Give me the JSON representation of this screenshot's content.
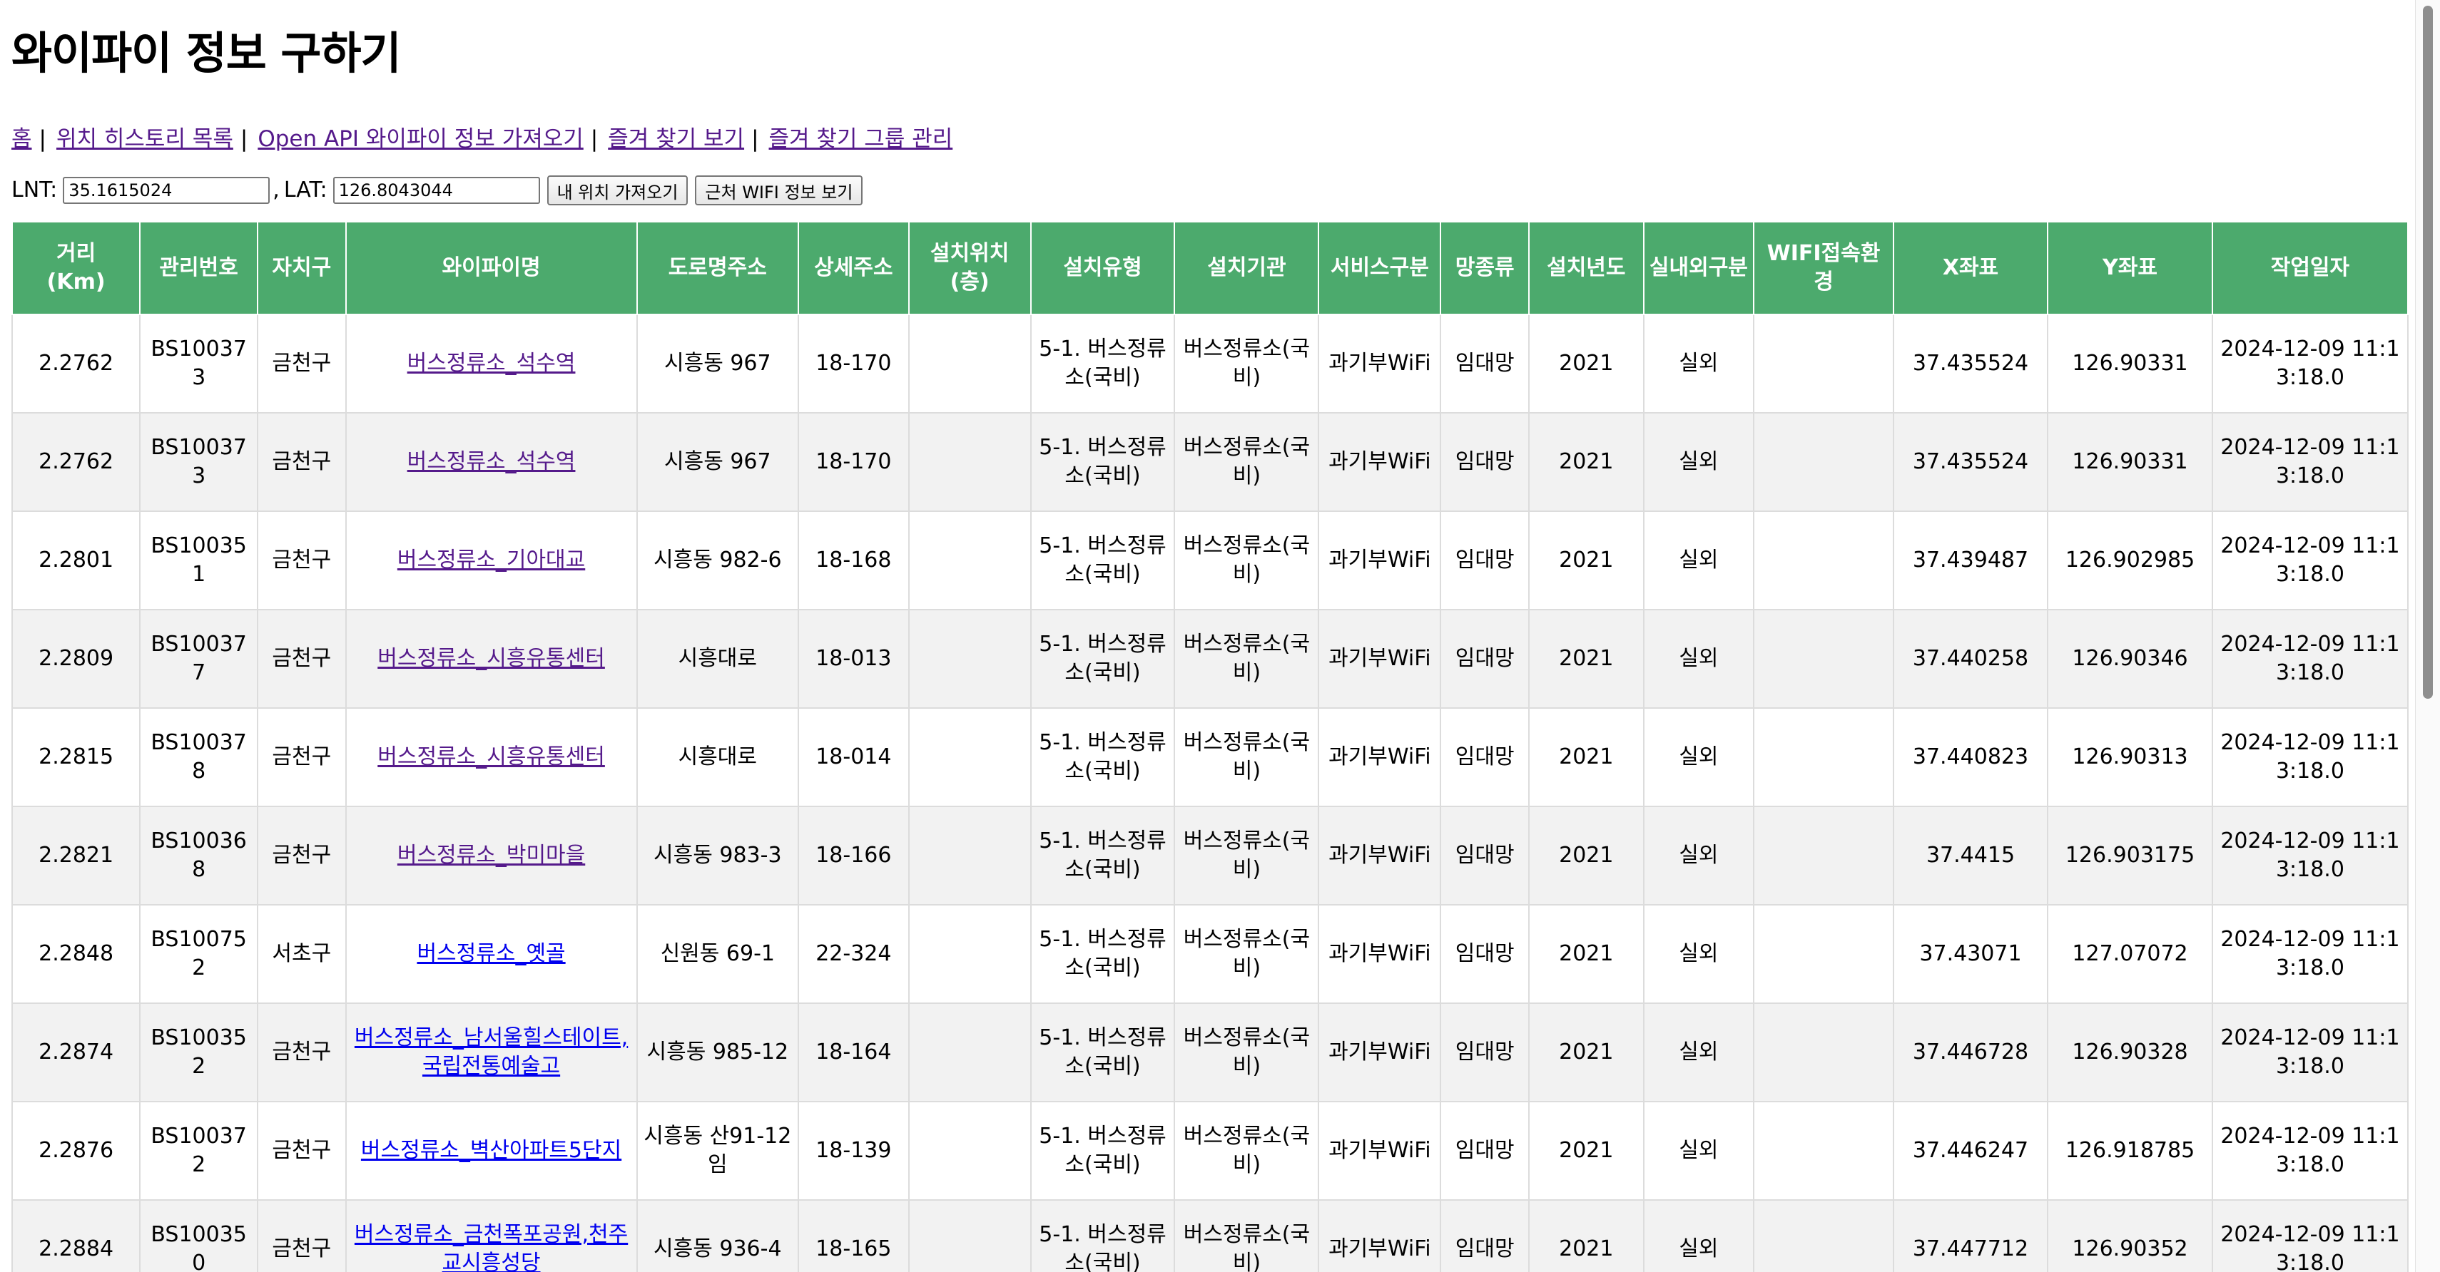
{
  "page": {
    "title": "와이파이 정보 구하기"
  },
  "nav": {
    "items": [
      {
        "label": "홈"
      },
      {
        "label": "위치 히스토리 목록"
      },
      {
        "label": "Open API 와이파이 정보 가져오기"
      },
      {
        "label": "즐겨 찾기 보기"
      },
      {
        "label": "즐겨 찾기 그룹 관리"
      }
    ],
    "separator": "|"
  },
  "controls": {
    "lnt_label": "LNT:",
    "lnt_value": "35.1615024",
    "comma": ",",
    "lat_label": "LAT:",
    "lat_value": "126.8043044",
    "get_location_label": "내 위치 가져오기",
    "nearby_wifi_label": "근처 WIFI 정보 보기"
  },
  "table": {
    "headers": [
      "거리\n(Km)",
      "관리번호",
      "자치구",
      "와이파이명",
      "도로명주소",
      "상세주소",
      "설치위치\n(층)",
      "설치유형",
      "설치기관",
      "서비스구분",
      "망종류",
      "설치년도",
      "실내외구분",
      "WIFI접속환경",
      "X좌표",
      "Y좌표",
      "작업일자"
    ],
    "rows": [
      {
        "distance": "2.2762",
        "mgr_no": "BS100373",
        "district": "금천구",
        "name": "버스정류소_석수역",
        "address": "시흥동 967",
        "detail": "18-170",
        "floor": "",
        "install_type": "5-1. 버스정류소(국비)",
        "install_org": "버스정류소(국비)",
        "service": "과기부WiFi",
        "net_type": "임대망",
        "year": "2021",
        "in_out": "실외",
        "wifi_env": "",
        "x": "37.435524",
        "y": "126.90331",
        "work_date": "2024-12-09 11:13:18.0"
      },
      {
        "distance": "2.2762",
        "mgr_no": "BS100373",
        "district": "금천구",
        "name": "버스정류소_석수역",
        "address": "시흥동 967",
        "detail": "18-170",
        "floor": "",
        "install_type": "5-1. 버스정류소(국비)",
        "install_org": "버스정류소(국비)",
        "service": "과기부WiFi",
        "net_type": "임대망",
        "year": "2021",
        "in_out": "실외",
        "wifi_env": "",
        "x": "37.435524",
        "y": "126.90331",
        "work_date": "2024-12-09 11:13:18.0"
      },
      {
        "distance": "2.2801",
        "mgr_no": "BS100351",
        "district": "금천구",
        "name": "버스정류소_기아대교",
        "address": "시흥동 982-6",
        "detail": "18-168",
        "floor": "",
        "install_type": "5-1. 버스정류소(국비)",
        "install_org": "버스정류소(국비)",
        "service": "과기부WiFi",
        "net_type": "임대망",
        "year": "2021",
        "in_out": "실외",
        "wifi_env": "",
        "x": "37.439487",
        "y": "126.902985",
        "work_date": "2024-12-09 11:13:18.0"
      },
      {
        "distance": "2.2809",
        "mgr_no": "BS100377",
        "district": "금천구",
        "name": "버스정류소_시흥유통센터",
        "address": "시흥대로",
        "detail": "18-013",
        "floor": "",
        "install_type": "5-1. 버스정류소(국비)",
        "install_org": "버스정류소(국비)",
        "service": "과기부WiFi",
        "net_type": "임대망",
        "year": "2021",
        "in_out": "실외",
        "wifi_env": "",
        "x": "37.440258",
        "y": "126.90346",
        "work_date": "2024-12-09 11:13:18.0"
      },
      {
        "distance": "2.2815",
        "mgr_no": "BS100378",
        "district": "금천구",
        "name": "버스정류소_시흥유통센터",
        "address": "시흥대로",
        "detail": "18-014",
        "floor": "",
        "install_type": "5-1. 버스정류소(국비)",
        "install_org": "버스정류소(국비)",
        "service": "과기부WiFi",
        "net_type": "임대망",
        "year": "2021",
        "in_out": "실외",
        "wifi_env": "",
        "x": "37.440823",
        "y": "126.90313",
        "work_date": "2024-12-09 11:13:18.0"
      },
      {
        "distance": "2.2821",
        "mgr_no": "BS100368",
        "district": "금천구",
        "name": "버스정류소_박미마을",
        "address": "시흥동 983-3",
        "detail": "18-166",
        "floor": "",
        "install_type": "5-1. 버스정류소(국비)",
        "install_org": "버스정류소(국비)",
        "service": "과기부WiFi",
        "net_type": "임대망",
        "year": "2021",
        "in_out": "실외",
        "wifi_env": "",
        "x": "37.4415",
        "y": "126.903175",
        "work_date": "2024-12-09 11:13:18.0"
      },
      {
        "distance": "2.2848",
        "mgr_no": "BS100752",
        "district": "서초구",
        "name": "버스정류소_옛골",
        "address": "신원동 69-1",
        "detail": "22-324",
        "floor": "",
        "install_type": "5-1. 버스정류소(국비)",
        "install_org": "버스정류소(국비)",
        "service": "과기부WiFi",
        "net_type": "임대망",
        "year": "2021",
        "in_out": "실외",
        "wifi_env": "",
        "x": "37.43071",
        "y": "127.07072",
        "work_date": "2024-12-09 11:13:18.0"
      },
      {
        "distance": "2.2874",
        "mgr_no": "BS100352",
        "district": "금천구",
        "name": "버스정류소_남서울힐스테이트,국립전통예술고",
        "address": "시흥동 985-12",
        "detail": "18-164",
        "floor": "",
        "install_type": "5-1. 버스정류소(국비)",
        "install_org": "버스정류소(국비)",
        "service": "과기부WiFi",
        "net_type": "임대망",
        "year": "2021",
        "in_out": "실외",
        "wifi_env": "",
        "x": "37.446728",
        "y": "126.90328",
        "work_date": "2024-12-09 11:13:18.0"
      },
      {
        "distance": "2.2876",
        "mgr_no": "BS100372",
        "district": "금천구",
        "name": "버스정류소_벽산아파트5단지",
        "address": "시흥동 산91-12임",
        "detail": "18-139",
        "floor": "",
        "install_type": "5-1. 버스정류소(국비)",
        "install_org": "버스정류소(국비)",
        "service": "과기부WiFi",
        "net_type": "임대망",
        "year": "2021",
        "in_out": "실외",
        "wifi_env": "",
        "x": "37.446247",
        "y": "126.918785",
        "work_date": "2024-12-09 11:13:18.0"
      },
      {
        "distance": "2.2884",
        "mgr_no": "BS100350",
        "district": "금천구",
        "name": "버스정류소_금천폭포공원,천주교시흥성당",
        "address": "시흥동 936-4",
        "detail": "18-165",
        "floor": "",
        "install_type": "5-1. 버스정류소(국비)",
        "install_org": "버스정류소(국비)",
        "service": "과기부WiFi",
        "net_type": "임대망",
        "year": "2021",
        "in_out": "실외",
        "wifi_env": "",
        "x": "37.447712",
        "y": "126.90352",
        "work_date": "2024-12-09 11:13:18.0"
      }
    ],
    "visited_links": [
      true,
      true,
      true,
      true,
      true,
      true,
      false,
      false,
      false,
      false
    ]
  },
  "colors": {
    "header_bg": "#4caa6d",
    "visited_link": "#551a8b",
    "unvisited_link": "#0000ee",
    "stripe": "#f2f2f2"
  }
}
